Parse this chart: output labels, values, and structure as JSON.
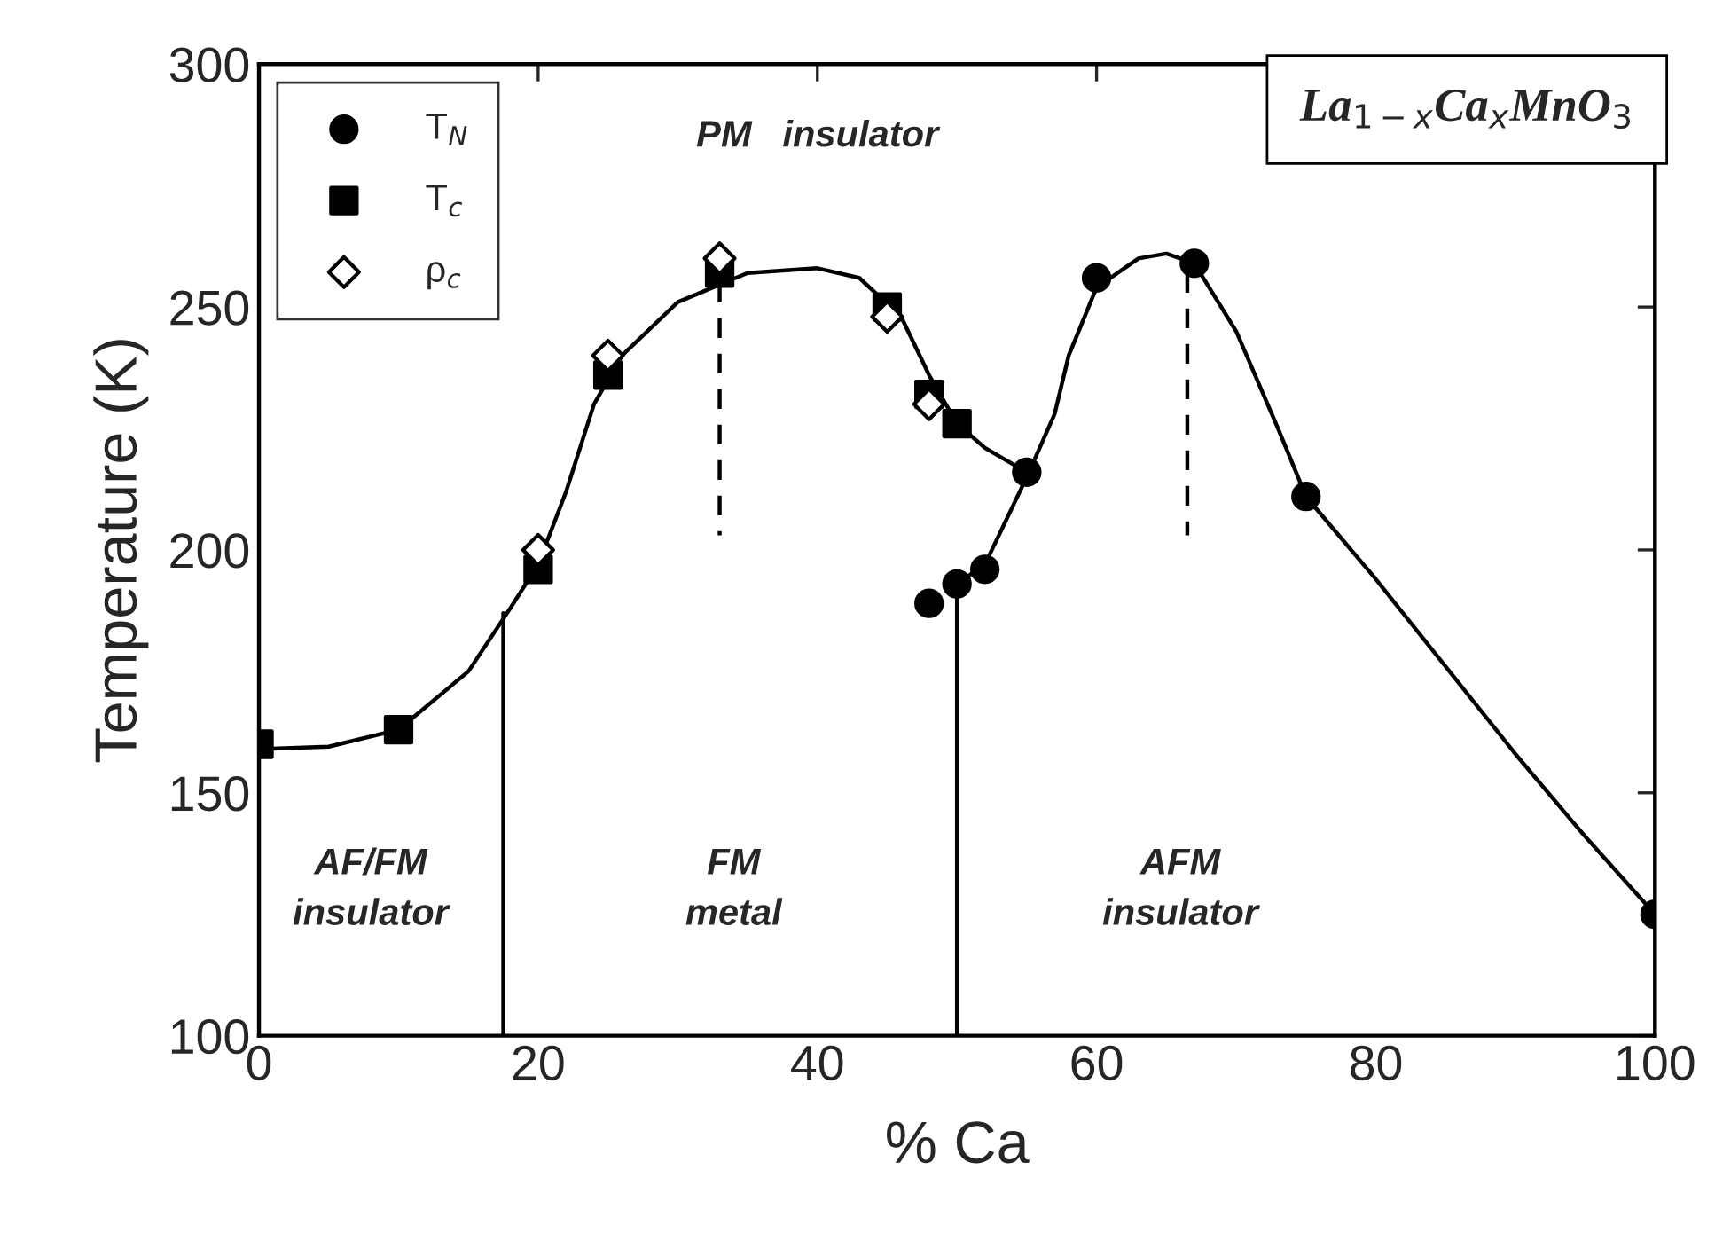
{
  "chart_data": {
    "type": "scatter",
    "title": "La$_{1−x}$Ca$_{x}$MnO$_{3}$",
    "xlabel": "% Ca",
    "ylabel": "Temperature (K)",
    "xlim": [
      0,
      100
    ],
    "ylim": [
      100,
      300
    ],
    "xticks": [
      0,
      20,
      40,
      60,
      80,
      100
    ],
    "yticks": [
      100,
      150,
      200,
      250,
      300
    ],
    "grid": false,
    "legend": "top left",
    "series": [
      {
        "type": "line",
        "color": "#000000",
        "line_style": "solid",
        "marker": "none",
        "x": [
          0,
          5,
          10,
          15,
          18,
          20,
          22,
          24,
          26,
          30,
          35,
          40,
          43,
          46,
          48,
          50,
          52,
          55
        ],
        "values": [
          159,
          159.5,
          163,
          175,
          188,
          197,
          212,
          230,
          240,
          251,
          257,
          258,
          256,
          248,
          236,
          226,
          221,
          216
        ]
      },
      {
        "type": "line",
        "color": "#000000",
        "line_style": "solid",
        "marker": "none",
        "x": [
          50,
          52,
          55,
          57,
          58,
          60,
          63,
          65,
          67,
          70,
          73,
          75,
          80,
          85,
          90,
          95,
          100
        ],
        "values": [
          193,
          197,
          215,
          228,
          240,
          254,
          260,
          261,
          259,
          245,
          225,
          211,
          194,
          176,
          158,
          141,
          125
        ]
      },
      {
        "type": "line",
        "color": "#000000",
        "line_style": "solid",
        "marker": "none",
        "x": [
          17.5,
          17.5
        ],
        "values": [
          100,
          187
        ]
      },
      {
        "type": "line",
        "color": "#000000",
        "line_style": "solid",
        "marker": "none",
        "x": [
          50,
          50
        ],
        "values": [
          100,
          193
        ]
      },
      {
        "type": "line",
        "color": "#000000",
        "line_style": "dashed",
        "marker": "none",
        "x": [
          33,
          33
        ],
        "values": [
          255,
          203
        ]
      },
      {
        "type": "line",
        "color": "#000000",
        "line_style": "dashed",
        "marker": "none",
        "x": [
          66.5,
          66.5
        ],
        "values": [
          257,
          203
        ]
      },
      {
        "name": "T$_{N}$",
        "color": "#000000",
        "marker": "circle",
        "x": [
          48,
          50,
          52,
          55,
          60,
          67,
          75,
          100
        ],
        "values": [
          189,
          193,
          196,
          216,
          256,
          259,
          211,
          125
        ]
      },
      {
        "name": "T$_{c}$",
        "color": "#000000",
        "marker": "square",
        "x": [
          0,
          10,
          20,
          25,
          33,
          45,
          48,
          50
        ],
        "values": [
          160,
          163,
          196,
          236,
          257,
          250,
          232,
          226
        ]
      },
      {
        "name": "ρ$_{c}$",
        "color": "#ffffff",
        "marker": "diamond",
        "x": [
          20,
          25,
          33,
          45,
          48
        ],
        "values": [
          200,
          240,
          260,
          248,
          230
        ]
      }
    ],
    "annotations": [
      "PM   insulator",
      "AF/FM\ninsulator",
      "FM\nmetal",
      "AFM\ninsulator"
    ]
  }
}
